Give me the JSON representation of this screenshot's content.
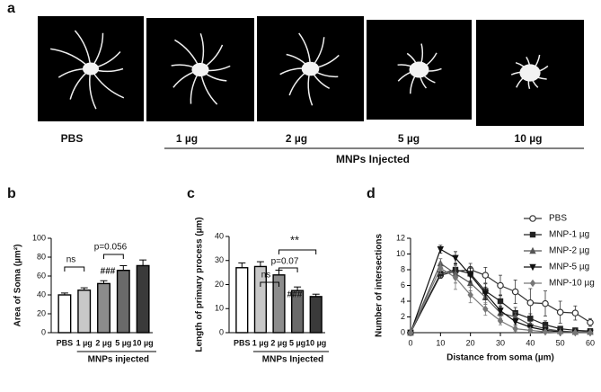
{
  "panel_a": {
    "label": "a",
    "images": [
      "PBS",
      "1 µg",
      "2 µg",
      "5 µg",
      "10 µg"
    ],
    "group_label": "MNPs Injected"
  },
  "chart_data": [
    {
      "type": "bar",
      "panel_label": "b",
      "y_label": "Area of Soma (µm²)",
      "x_label": "MNPs injected",
      "categories": [
        "PBS",
        "1 µg",
        "2 µg",
        "5 µg",
        "10 µg"
      ],
      "values": [
        40,
        45,
        52,
        66,
        71
      ],
      "errors": [
        2,
        2.5,
        3,
        5,
        6
      ],
      "colors": [
        "#ffffff",
        "#c8c8c8",
        "#8c8c8c",
        "#6a6a6a",
        "#3a3a3a"
      ],
      "ylim": [
        0,
        100
      ],
      "yticks": [
        0,
        20,
        40,
        60,
        80,
        100
      ],
      "annotations": [
        "ns",
        "p=0.056",
        "###"
      ]
    },
    {
      "type": "bar",
      "panel_label": "c",
      "y_label": "Length of primary process (µm)",
      "x_label": "MNPs Injected",
      "categories": [
        "PBS",
        "1 µg",
        "2 µg",
        "5 µg",
        "10 µg"
      ],
      "values": [
        27,
        27.5,
        24,
        17.5,
        15
      ],
      "errors": [
        2,
        2,
        2,
        1.5,
        1
      ],
      "colors": [
        "#ffffff",
        "#c8c8c8",
        "#8c8c8c",
        "#6a6a6a",
        "#3a3a3a"
      ],
      "ylim": [
        0,
        40
      ],
      "yticks": [
        0,
        10,
        20,
        30,
        40
      ],
      "annotations": [
        "ns",
        "p=0.07",
        "###",
        "**"
      ]
    },
    {
      "type": "line",
      "panel_label": "d",
      "y_label": "Number of intersections",
      "x_label": "Distance from soma (µm)",
      "x": [
        0,
        10,
        15,
        20,
        25,
        30,
        35,
        40,
        45,
        50,
        55,
        60
      ],
      "series": [
        {
          "name": "PBS",
          "color": "#333333",
          "marker": "circle",
          "values": [
            0,
            7.3,
            7.8,
            8.0,
            7.3,
            6.0,
            5.2,
            3.8,
            3.7,
            2.6,
            2.5,
            1.3
          ],
          "errors": [
            0,
            0.4,
            1.0,
            0.8,
            1.0,
            1.3,
            1.5,
            1.8,
            1.6,
            1.4,
            0.9,
            0.5
          ]
        },
        {
          "name": "MNP-1 µg",
          "color": "#222222",
          "marker": "square",
          "values": [
            0,
            7.5,
            8.0,
            7.5,
            5.3,
            4.0,
            2.5,
            1.8,
            1.0,
            0.5,
            0.3,
            0.2
          ],
          "errors": [
            0,
            0.5,
            0.8,
            0.9,
            0.9,
            0.8,
            0.7,
            0.6,
            0.5,
            0.3,
            0.2,
            0.1
          ]
        },
        {
          "name": "MNP-2 µg",
          "color": "#555555",
          "marker": "triangle",
          "values": [
            0,
            8.8,
            7.5,
            6.3,
            4.5,
            2.5,
            2.0,
            1.0,
            0.5,
            0.2,
            0.1,
            0.1
          ],
          "errors": [
            0,
            0.6,
            1.2,
            1.0,
            0.9,
            0.7,
            0.6,
            0.4,
            0.3,
            0.2,
            0.1,
            0.1
          ]
        },
        {
          "name": "MNP-5 µg",
          "color": "#111111",
          "marker": "triangle-down",
          "values": [
            0,
            10.6,
            9.5,
            7.3,
            5.0,
            2.8,
            1.4,
            0.7,
            0.3,
            0.1,
            0,
            0
          ],
          "errors": [
            0,
            0.5,
            0.8,
            0.9,
            0.8,
            0.6,
            0.4,
            0.3,
            0.2,
            0.1,
            0,
            0
          ]
        },
        {
          "name": "MNP-10 µg",
          "color": "#777777",
          "marker": "diamond",
          "values": [
            0,
            8.2,
            7.0,
            4.8,
            3.0,
            1.5,
            0.5,
            0.3,
            0.1,
            0,
            0,
            0
          ],
          "errors": [
            0,
            0.7,
            1.5,
            1.0,
            0.8,
            0.5,
            0.3,
            0.2,
            0.1,
            0,
            0,
            0
          ]
        }
      ],
      "xlim": [
        0,
        60
      ],
      "xticks": [
        0,
        10,
        20,
        30,
        40,
        50,
        60
      ],
      "ylim": [
        0,
        12
      ],
      "yticks": [
        0,
        2,
        4,
        6,
        8,
        10,
        12
      ]
    }
  ]
}
